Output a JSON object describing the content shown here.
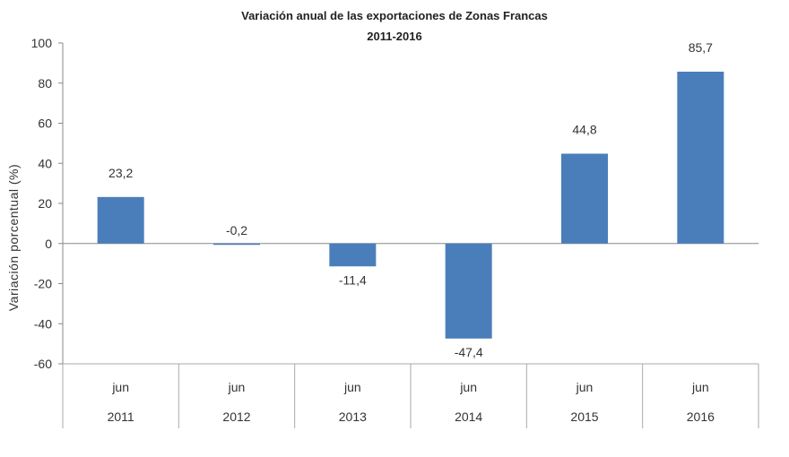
{
  "chart_data": {
    "type": "bar",
    "title": "Variación anual de las exportaciones de Zonas Francas",
    "subtitle": "2011-2016",
    "xlabel": "",
    "ylabel": "Variación porcentual (%)",
    "ylim": [
      -60,
      100
    ],
    "yticks": [
      100,
      80,
      60,
      40,
      20,
      0,
      -20,
      -40,
      -60
    ],
    "ytick_labels": [
      "100",
      "80",
      "60",
      "40",
      "20",
      "0",
      "-20",
      "-40",
      "-60"
    ],
    "categories": [
      {
        "month": "jun",
        "year": "2011"
      },
      {
        "month": "jun",
        "year": "2012"
      },
      {
        "month": "jun",
        "year": "2013"
      },
      {
        "month": "jun",
        "year": "2014"
      },
      {
        "month": "jun",
        "year": "2015"
      },
      {
        "month": "jun",
        "year": "2016"
      }
    ],
    "values": [
      23.2,
      -0.2,
      -11.4,
      -47.4,
      44.8,
      85.7
    ],
    "data_labels": [
      "23,2",
      "-0,2",
      "-11,4",
      "-47,4",
      "44,8",
      "85,7"
    ],
    "bar_color": "#4a7ebb",
    "grid": false,
    "legend": "none"
  }
}
